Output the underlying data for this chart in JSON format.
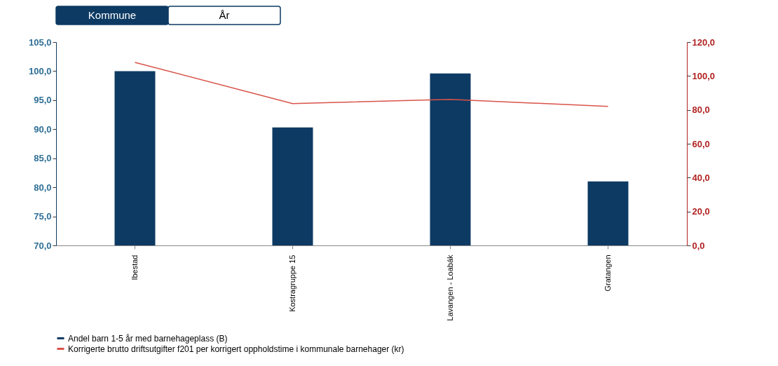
{
  "chart_data": {
    "type": "bar",
    "categories": [
      "Ibestad",
      "Kostragruppe 15",
      "Lavangen - Loabák",
      "Gratangen"
    ],
    "series": [
      {
        "name": "Andel barn 1-5 år med barnehageplass (B)",
        "color": "#0d3a63",
        "values": [
          100.0,
          90.3,
          99.6,
          81.0
        ]
      },
      {
        "name": "Korrigerte brutto driftsutgifter f201 per korrigert oppholdstime i kommunale barnehager (kr)",
        "color": "#d9534a",
        "type": "line",
        "axis": "y2",
        "values": [
          108,
          83.7,
          86.2,
          82
        ]
      }
    ],
    "ylim": [
      70,
      105
    ],
    "yticks": [
      {
        "value": 70,
        "label": "70,0"
      },
      {
        "value": 75,
        "label": "75,0"
      },
      {
        "value": 80,
        "label": "80,0"
      },
      {
        "value": 85,
        "label": "85,0"
      },
      {
        "value": 90,
        "label": "90,0"
      },
      {
        "value": 95,
        "label": "95,0"
      },
      {
        "value": 100,
        "label": "100,0"
      },
      {
        "value": 105,
        "label": "105,0"
      }
    ],
    "y2lim": [
      0,
      120
    ],
    "y2ticks": [
      {
        "value": 0,
        "label": "0,0"
      },
      {
        "value": 20,
        "label": "20,0"
      },
      {
        "value": 40,
        "label": "40,0"
      },
      {
        "value": 60,
        "label": "60,0"
      },
      {
        "value": 80,
        "label": "80,0"
      },
      {
        "value": 100,
        "label": "100,0"
      },
      {
        "value": 120,
        "label": "120,0"
      }
    ],
    "annotations": [
      "Kommune",
      "År"
    ],
    "legend": "bottom",
    "grid": false,
    "marker": "none",
    "line_style": "solid"
  }
}
